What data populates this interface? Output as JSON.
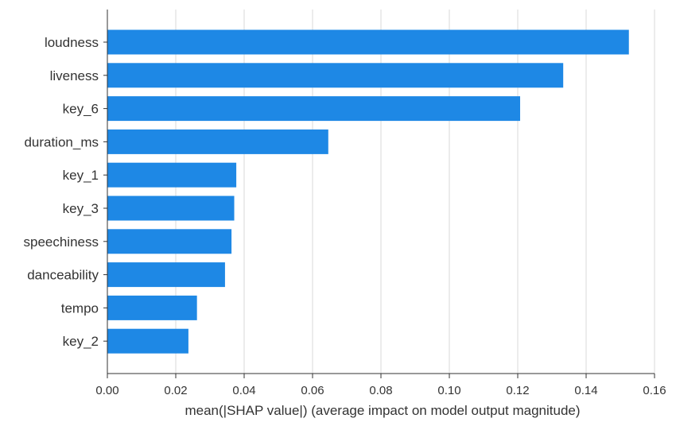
{
  "chart_data": {
    "type": "bar",
    "orientation": "horizontal",
    "categories": [
      "loudness",
      "liveness",
      "key_6",
      "duration_ms",
      "key_1",
      "key_3",
      "speechiness",
      "danceability",
      "tempo",
      "key_2"
    ],
    "values": [
      0.1525,
      0.1333,
      0.1207,
      0.0646,
      0.0377,
      0.0371,
      0.0363,
      0.0344,
      0.0262,
      0.0237
    ],
    "xlabel": "mean(|SHAP value|) (average impact on model output magnitude)",
    "xlim": [
      0,
      0.16
    ],
    "xticks": [
      "0.00",
      "0.02",
      "0.04",
      "0.06",
      "0.08",
      "0.10",
      "0.12",
      "0.14",
      "0.16"
    ],
    "grid": true,
    "bar_color": "#1e88e5",
    "grid_color": "#d9d9d9",
    "axis_color": "#333333"
  }
}
